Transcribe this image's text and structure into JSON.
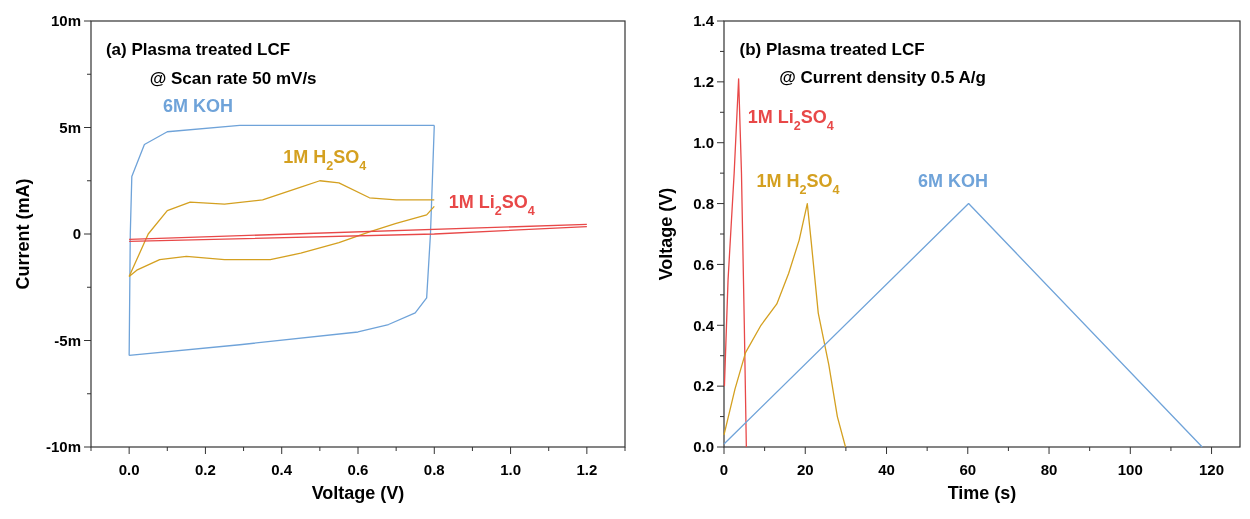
{
  "chart_data": [
    {
      "type": "line",
      "title": "(a) Plasma treated LCF",
      "subtitle": "@ Scan rate 50 mV/s",
      "xlabel": "Voltage (V)",
      "ylabel": "Current (mA)",
      "grid": false,
      "xlim": [
        -0.1,
        1.3
      ],
      "xticks": [
        {
          "value": -0.1,
          "label": null
        },
        {
          "value": 0,
          "label": "0.0"
        },
        {
          "value": 0.1,
          "label": null
        },
        0.2,
        {
          "value": 0.3,
          "label": null
        },
        0.4,
        {
          "value": 0.5,
          "label": null
        },
        0.6,
        {
          "value": 0.7,
          "label": null
        },
        0.8,
        {
          "value": 0.9,
          "label": null
        },
        {
          "value": 1,
          "label": "1.0"
        },
        {
          "value": 1.1,
          "label": null
        },
        1.2,
        {
          "value": 1.3,
          "label": null
        }
      ],
      "ylim": [
        -10,
        10
      ],
      "yticks": [
        {
          "value": -10,
          "label": "-10m"
        },
        {
          "value": -7.5,
          "label": null
        },
        {
          "value": -5,
          "label": "-5m"
        },
        {
          "value": -2.5,
          "label": null
        },
        0,
        {
          "value": 2.5,
          "label": null
        },
        {
          "value": 5,
          "label": "5m"
        },
        {
          "value": 7.5,
          "label": null
        },
        {
          "value": 10,
          "label": "10m"
        }
      ],
      "series": [
        {
          "name": "6M KOH",
          "color": "#6fa3d9",
          "x": [
            0,
            0.29,
            0.6,
            0.68,
            0.75,
            0.78,
            0.79,
            0.8
          ],
          "values": [
            -5.7,
            -5.2,
            -4.6,
            -4.25,
            -3.7,
            -3.0,
            0,
            5.1
          ]
        },
        {
          "color": "#6fa3d9",
          "x": [
            0.8,
            0.29,
            0.1,
            0.04,
            0.007,
            0.003,
            0
          ],
          "values": [
            5.1,
            5.1,
            4.8,
            4.2,
            2.7,
            0,
            -5.7
          ]
        },
        {
          "name": "1M H$_{2}$SO$_{4}$",
          "color": "#d4a020",
          "x": [
            0,
            0.02,
            0.05,
            0.1,
            0.16,
            0.25,
            0.35,
            0.45,
            0.5,
            0.55,
            0.63,
            0.7,
            0.8
          ],
          "values": [
            -2.0,
            -1.2,
            0,
            1.1,
            1.5,
            1.4,
            1.6,
            2.2,
            2.5,
            2.4,
            1.7,
            1.6,
            1.6
          ]
        },
        {
          "color": "#d4a020",
          "x": [
            0.8,
            0.78,
            0.7,
            0.63,
            0.55,
            0.45,
            0.37,
            0.25,
            0.15,
            0.08,
            0.02,
            0
          ],
          "values": [
            1.3,
            0.9,
            0.5,
            0.1,
            -0.4,
            -0.9,
            -1.2,
            -1.2,
            -1.05,
            -1.2,
            -1.7,
            -2.0
          ]
        },
        {
          "name": "1M Li$_{2}$SO$_{4}$",
          "color": "#e84848",
          "x": [
            0,
            1.2
          ],
          "values": [
            -0.25,
            0.45
          ]
        },
        {
          "color": "#e84848",
          "x": [
            1.2,
            0.8,
            0
          ],
          "values": [
            0.35,
            0,
            -0.35
          ]
        }
      ]
    },
    {
      "type": "line",
      "title": "(b) Plasma treated LCF",
      "subtitle": "@ Current density 0.5 A/g",
      "xlabel": "Time (s)",
      "ylabel": "Voltage (V)",
      "grid": false,
      "xlim": [
        0,
        127
      ],
      "xticks": [
        0,
        {
          "value": 10,
          "label": null
        },
        20,
        {
          "value": 30,
          "label": null
        },
        40,
        {
          "value": 50,
          "label": null
        },
        60,
        {
          "value": 70,
          "label": null
        },
        80,
        {
          "value": 90,
          "label": null
        },
        100,
        {
          "value": 110,
          "label": null
        },
        120
      ],
      "ylim": [
        0,
        1.4
      ],
      "yticks": [
        {
          "value": 0,
          "label": "0.0"
        },
        {
          "value": 0.1,
          "label": null
        },
        0.2,
        {
          "value": 0.3,
          "label": null
        },
        0.4,
        {
          "value": 0.5,
          "label": null
        },
        0.6,
        {
          "value": 0.7,
          "label": null
        },
        0.8,
        {
          "value": 0.9,
          "label": null
        },
        {
          "value": 1,
          "label": "1.0"
        },
        {
          "value": 1.1,
          "label": null
        },
        1.2,
        {
          "value": 1.3,
          "label": null
        },
        1.4
      ],
      "series": [
        {
          "name": "1M Li$_{2}$SO$_{4}$",
          "color": "#e84848",
          "x": [
            0.1,
            1,
            2.5,
            3.6,
            4.3,
            5,
            5.5
          ],
          "values": [
            0.2,
            0.55,
            0.9,
            1.21,
            0.9,
            0.4,
            0
          ]
        },
        {
          "name": "1M H$_{2}$SO$_{4}$",
          "color": "#d4a020",
          "x": [
            0,
            2.7,
            5.3,
            9.1,
            13,
            15.9,
            18.5,
            20.5,
            21.5,
            23.2,
            25.8,
            27.9,
            29.9
          ],
          "values": [
            0.04,
            0.19,
            0.31,
            0.4,
            0.47,
            0.57,
            0.68,
            0.8,
            0.67,
            0.44,
            0.27,
            0.1,
            0
          ]
        },
        {
          "name": "6M KOH",
          "color": "#6fa3d9",
          "x": [
            0,
            60.2,
            117.7
          ],
          "values": [
            0.01,
            0.8,
            0
          ]
        }
      ]
    }
  ]
}
